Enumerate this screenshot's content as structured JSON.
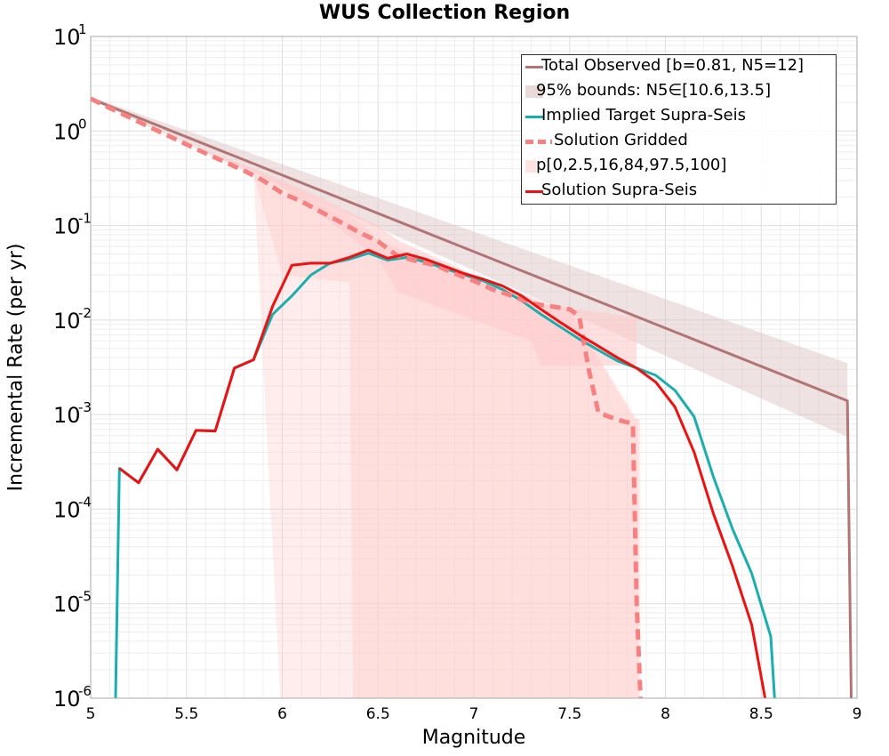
{
  "chart_data": {
    "type": "line",
    "title": "WUS Collection Region",
    "xlabel": "Magnitude",
    "ylabel": "Incremental Rate (per yr)",
    "xlim": [
      5,
      9
    ],
    "ylim": [
      1e-06,
      10
    ],
    "yscale": "log",
    "grid": true,
    "legend_position": "top-right",
    "xticks": [
      "5",
      "5.5",
      "6",
      "6.5",
      "7",
      "7.5",
      "8",
      "8.5",
      "9"
    ],
    "yticks": [
      {
        "base": "10",
        "exp": "-6"
      },
      {
        "base": "10",
        "exp": "-5"
      },
      {
        "base": "10",
        "exp": "-4"
      },
      {
        "base": "10",
        "exp": "-3"
      },
      {
        "base": "10",
        "exp": "-2"
      },
      {
        "base": "10",
        "exp": "-1"
      },
      {
        "base": "10",
        "exp": "0"
      },
      {
        "base": "10",
        "exp": "1"
      }
    ],
    "series": [
      {
        "name": "Total Observed [b=0.81, N5=12]",
        "kind": "line",
        "color": "#b27474",
        "style": "solid",
        "x": [
          5.0,
          8.95,
          8.95,
          8.97
        ],
        "y": [
          2.2,
          0.0014,
          0.0014,
          1e-06
        ]
      },
      {
        "name": "95% bounds: N5∈[10.6,13.5]",
        "kind": "band",
        "color": "#dbbfbf",
        "opacity": 0.45,
        "x": [
          5.0,
          8.95
        ],
        "lower": [
          2.15,
          0.00058
        ],
        "upper": [
          2.3,
          0.0035
        ]
      },
      {
        "name": "Implied Target Supra-Seis",
        "kind": "line",
        "color": "#1aaeae",
        "style": "solid",
        "x": [
          5.13,
          5.15,
          5.25,
          5.35,
          5.45,
          5.55,
          5.65,
          5.75,
          5.85,
          5.95,
          6.05,
          6.15,
          6.25,
          6.35,
          6.45,
          6.55,
          6.65,
          6.75,
          6.85,
          6.95,
          7.05,
          7.15,
          7.25,
          7.35,
          7.45,
          7.55,
          7.65,
          7.75,
          7.85,
          7.95,
          8.05,
          8.15,
          8.25,
          8.35,
          8.45,
          8.55,
          8.57
        ],
        "y": [
          1e-06,
          0.00027,
          0.00019,
          0.00043,
          0.00026,
          0.00068,
          0.00067,
          0.0031,
          0.0038,
          0.0115,
          0.018,
          0.03,
          0.04,
          0.044,
          0.051,
          0.043,
          0.046,
          0.041,
          0.035,
          0.03,
          0.026,
          0.021,
          0.016,
          0.0115,
          0.0085,
          0.0063,
          0.0048,
          0.0037,
          0.0031,
          0.0026,
          0.0018,
          0.00095,
          0.00022,
          6.2e-05,
          2.1e-05,
          4.5e-06,
          1e-06
        ]
      },
      {
        "name": "Solution Gridded",
        "kind": "line",
        "color": "#f78080",
        "style": "dashed",
        "x": [
          5.0,
          5.1,
          5.2,
          5.3,
          5.4,
          5.5,
          5.6,
          5.7,
          5.8,
          5.9,
          6.0,
          6.1,
          6.2,
          6.3,
          6.4,
          6.5,
          6.6,
          6.7,
          6.8,
          6.9,
          7.0,
          7.1,
          7.2,
          7.3,
          7.4,
          7.5,
          7.55,
          7.6,
          7.65,
          7.75,
          7.83,
          7.85,
          7.87
        ],
        "y": [
          2.2,
          1.75,
          1.4,
          1.12,
          0.9,
          0.72,
          0.58,
          0.47,
          0.38,
          0.3,
          0.22,
          0.18,
          0.14,
          0.11,
          0.085,
          0.068,
          0.048,
          0.042,
          0.038,
          0.031,
          0.026,
          0.021,
          0.018,
          0.015,
          0.014,
          0.013,
          0.011,
          0.003,
          0.00105,
          0.00088,
          0.0008,
          1e-05,
          1e-06
        ]
      },
      {
        "name": "p[0,2.5,16,84,97.5,100]",
        "kind": "percentile-bands",
        "color": "#ffcccc",
        "bands": [
          {
            "label": "0-100",
            "opacity": 0.35,
            "x": [
              5.0,
              5.5,
              5.85,
              5.99,
              6.0,
              6.5,
              7.0,
              7.5,
              7.85,
              7.87
            ],
            "lower": [
              2.2,
              0.72,
              0.35,
              1e-06,
              1e-06,
              1e-06,
              1e-06,
              1e-06,
              1e-06,
              1e-06
            ],
            "upper": [
              2.25,
              0.73,
              0.4,
              0.3,
              0.3,
              0.07,
              0.028,
              0.013,
              0.0009,
              0.0009
            ]
          },
          {
            "label": "2.5-97.5",
            "opacity": 0.45,
            "x": [
              5.0,
              5.5,
              5.85,
              6.0,
              6.35,
              6.37,
              6.4,
              6.5,
              7.0,
              7.5,
              7.84,
              7.86
            ],
            "lower": [
              2.2,
              0.72,
              0.34,
              0.03,
              0.025,
              1e-06,
              1e-06,
              1e-06,
              1e-06,
              1e-06,
              1e-06,
              1e-06
            ],
            "upper": [
              2.25,
              0.73,
              0.39,
              0.28,
              0.13,
              0.12,
              0.11,
              0.07,
              0.027,
              0.012,
              0.0009,
              0.0009
            ]
          },
          {
            "label": "16-84",
            "opacity": 0.6,
            "x": [
              5.0,
              5.5,
              5.85,
              6.0,
              6.2,
              6.5,
              6.6,
              7.0,
              7.3,
              7.35,
              7.55,
              7.8,
              7.85
            ],
            "lower": [
              2.2,
              0.72,
              0.38,
              0.25,
              0.13,
              0.045,
              0.02,
              0.01,
              0.006,
              0.0033,
              0.0033,
              0.0033,
              0.0034
            ],
            "upper": [
              2.25,
              0.73,
              0.4,
              0.3,
              0.2,
              0.1,
              0.07,
              0.03,
              0.017,
              0.015,
              0.013,
              0.011,
              0.011
            ]
          }
        ]
      },
      {
        "name": "Solution Supra-Seis",
        "kind": "line",
        "color": "#ee1111",
        "style": "solid",
        "x": [
          5.15,
          5.25,
          5.35,
          5.45,
          5.55,
          5.65,
          5.75,
          5.85,
          5.95,
          6.05,
          6.15,
          6.25,
          6.35,
          6.45,
          6.55,
          6.65,
          6.75,
          6.85,
          6.95,
          7.05,
          7.15,
          7.25,
          7.35,
          7.45,
          7.55,
          7.65,
          7.75,
          7.85,
          7.95,
          8.05,
          8.15,
          8.25,
          8.35,
          8.45,
          8.52
        ],
        "y": [
          0.00027,
          0.00019,
          0.00043,
          0.00026,
          0.00068,
          0.00067,
          0.0031,
          0.0038,
          0.014,
          0.038,
          0.04,
          0.04,
          0.046,
          0.055,
          0.045,
          0.05,
          0.044,
          0.037,
          0.031,
          0.027,
          0.023,
          0.018,
          0.013,
          0.0095,
          0.007,
          0.0053,
          0.004,
          0.0031,
          0.0022,
          0.0012,
          0.0004,
          9e-05,
          2.5e-05,
          6e-06,
          1e-06
        ]
      }
    ]
  }
}
